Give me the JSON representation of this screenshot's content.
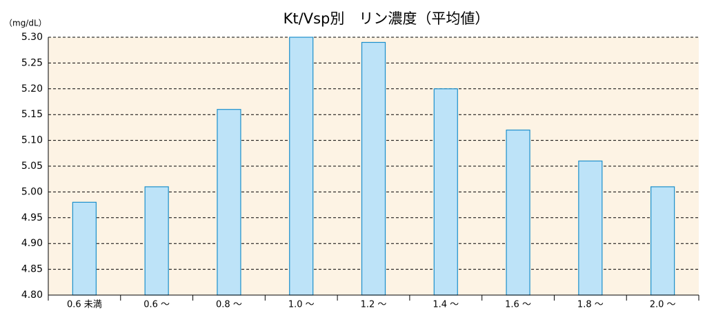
{
  "chart_data": {
    "type": "bar",
    "title": "Kt/Vsp別　リン濃度（平均値）",
    "y_label": "（mg/dL）",
    "categories": [
      "0.6 未満",
      "0.6 ～",
      "0.8 ～",
      "1.0 ～",
      "1.2 ～",
      "1.4 ～",
      "1.6 ～",
      "1.8 ～",
      "2.0 ～"
    ],
    "values": [
      4.98,
      5.01,
      5.16,
      5.3,
      5.29,
      5.2,
      5.12,
      5.06,
      5.01
    ],
    "color": "#bde3f8",
    "edge_color": "#1b8fcb",
    "background": "#fdf3e4",
    "ylim": [
      4.8,
      5.3
    ],
    "yticks": [
      {
        "value": 4.8,
        "label": "4.80"
      },
      4.85,
      {
        "value": 4.9,
        "label": "4.90"
      },
      4.95,
      {
        "value": 5.0,
        "label": "5.00"
      },
      5.05,
      {
        "value": 5.1,
        "label": "5.10"
      },
      5.15,
      {
        "value": 5.2,
        "label": "5.20"
      },
      5.25,
      {
        "value": 5.3,
        "label": "5.30"
      }
    ],
    "grid": true
  }
}
